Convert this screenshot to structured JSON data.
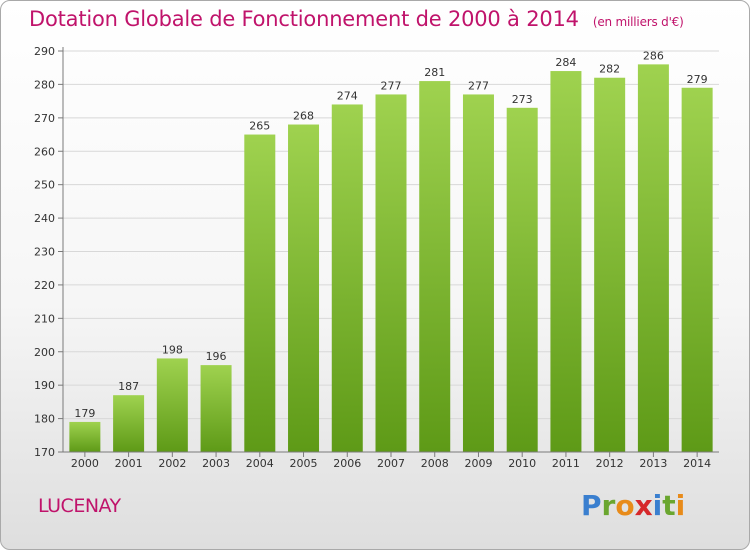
{
  "title": {
    "main": "Dotation Globale de Fonctionnement de 2000 à 2014",
    "unit": "(en milliers d'€)"
  },
  "city": "LUCENAY",
  "logo": {
    "letters": [
      "P",
      "r",
      "o",
      "x",
      "i",
      "t",
      "i"
    ],
    "colors": [
      "#3a7fcf",
      "#6aa62f",
      "#e88b1a",
      "#d6282b",
      "#3a7fcf",
      "#6aa62f",
      "#e88b1a"
    ]
  },
  "colors": {
    "accent": "#c0136b",
    "bar_top": "#9fd24f",
    "bar_bottom": "#5e9a17",
    "grid": "#d8d8d8",
    "axis": "#7a7a7a",
    "text": "#333333"
  },
  "chart_data": {
    "type": "bar",
    "categories": [
      "2000",
      "2001",
      "2002",
      "2003",
      "2004",
      "2005",
      "2006",
      "2007",
      "2008",
      "2009",
      "2010",
      "2011",
      "2012",
      "2013",
      "2014"
    ],
    "values": [
      179,
      187,
      198,
      196,
      265,
      268,
      274,
      277,
      281,
      277,
      273,
      284,
      282,
      286,
      279
    ],
    "ylim": [
      170,
      290
    ],
    "yticks": [
      170,
      180,
      190,
      200,
      210,
      220,
      230,
      240,
      250,
      260,
      270,
      280,
      290
    ],
    "grid": true,
    "data_labels": true
  }
}
